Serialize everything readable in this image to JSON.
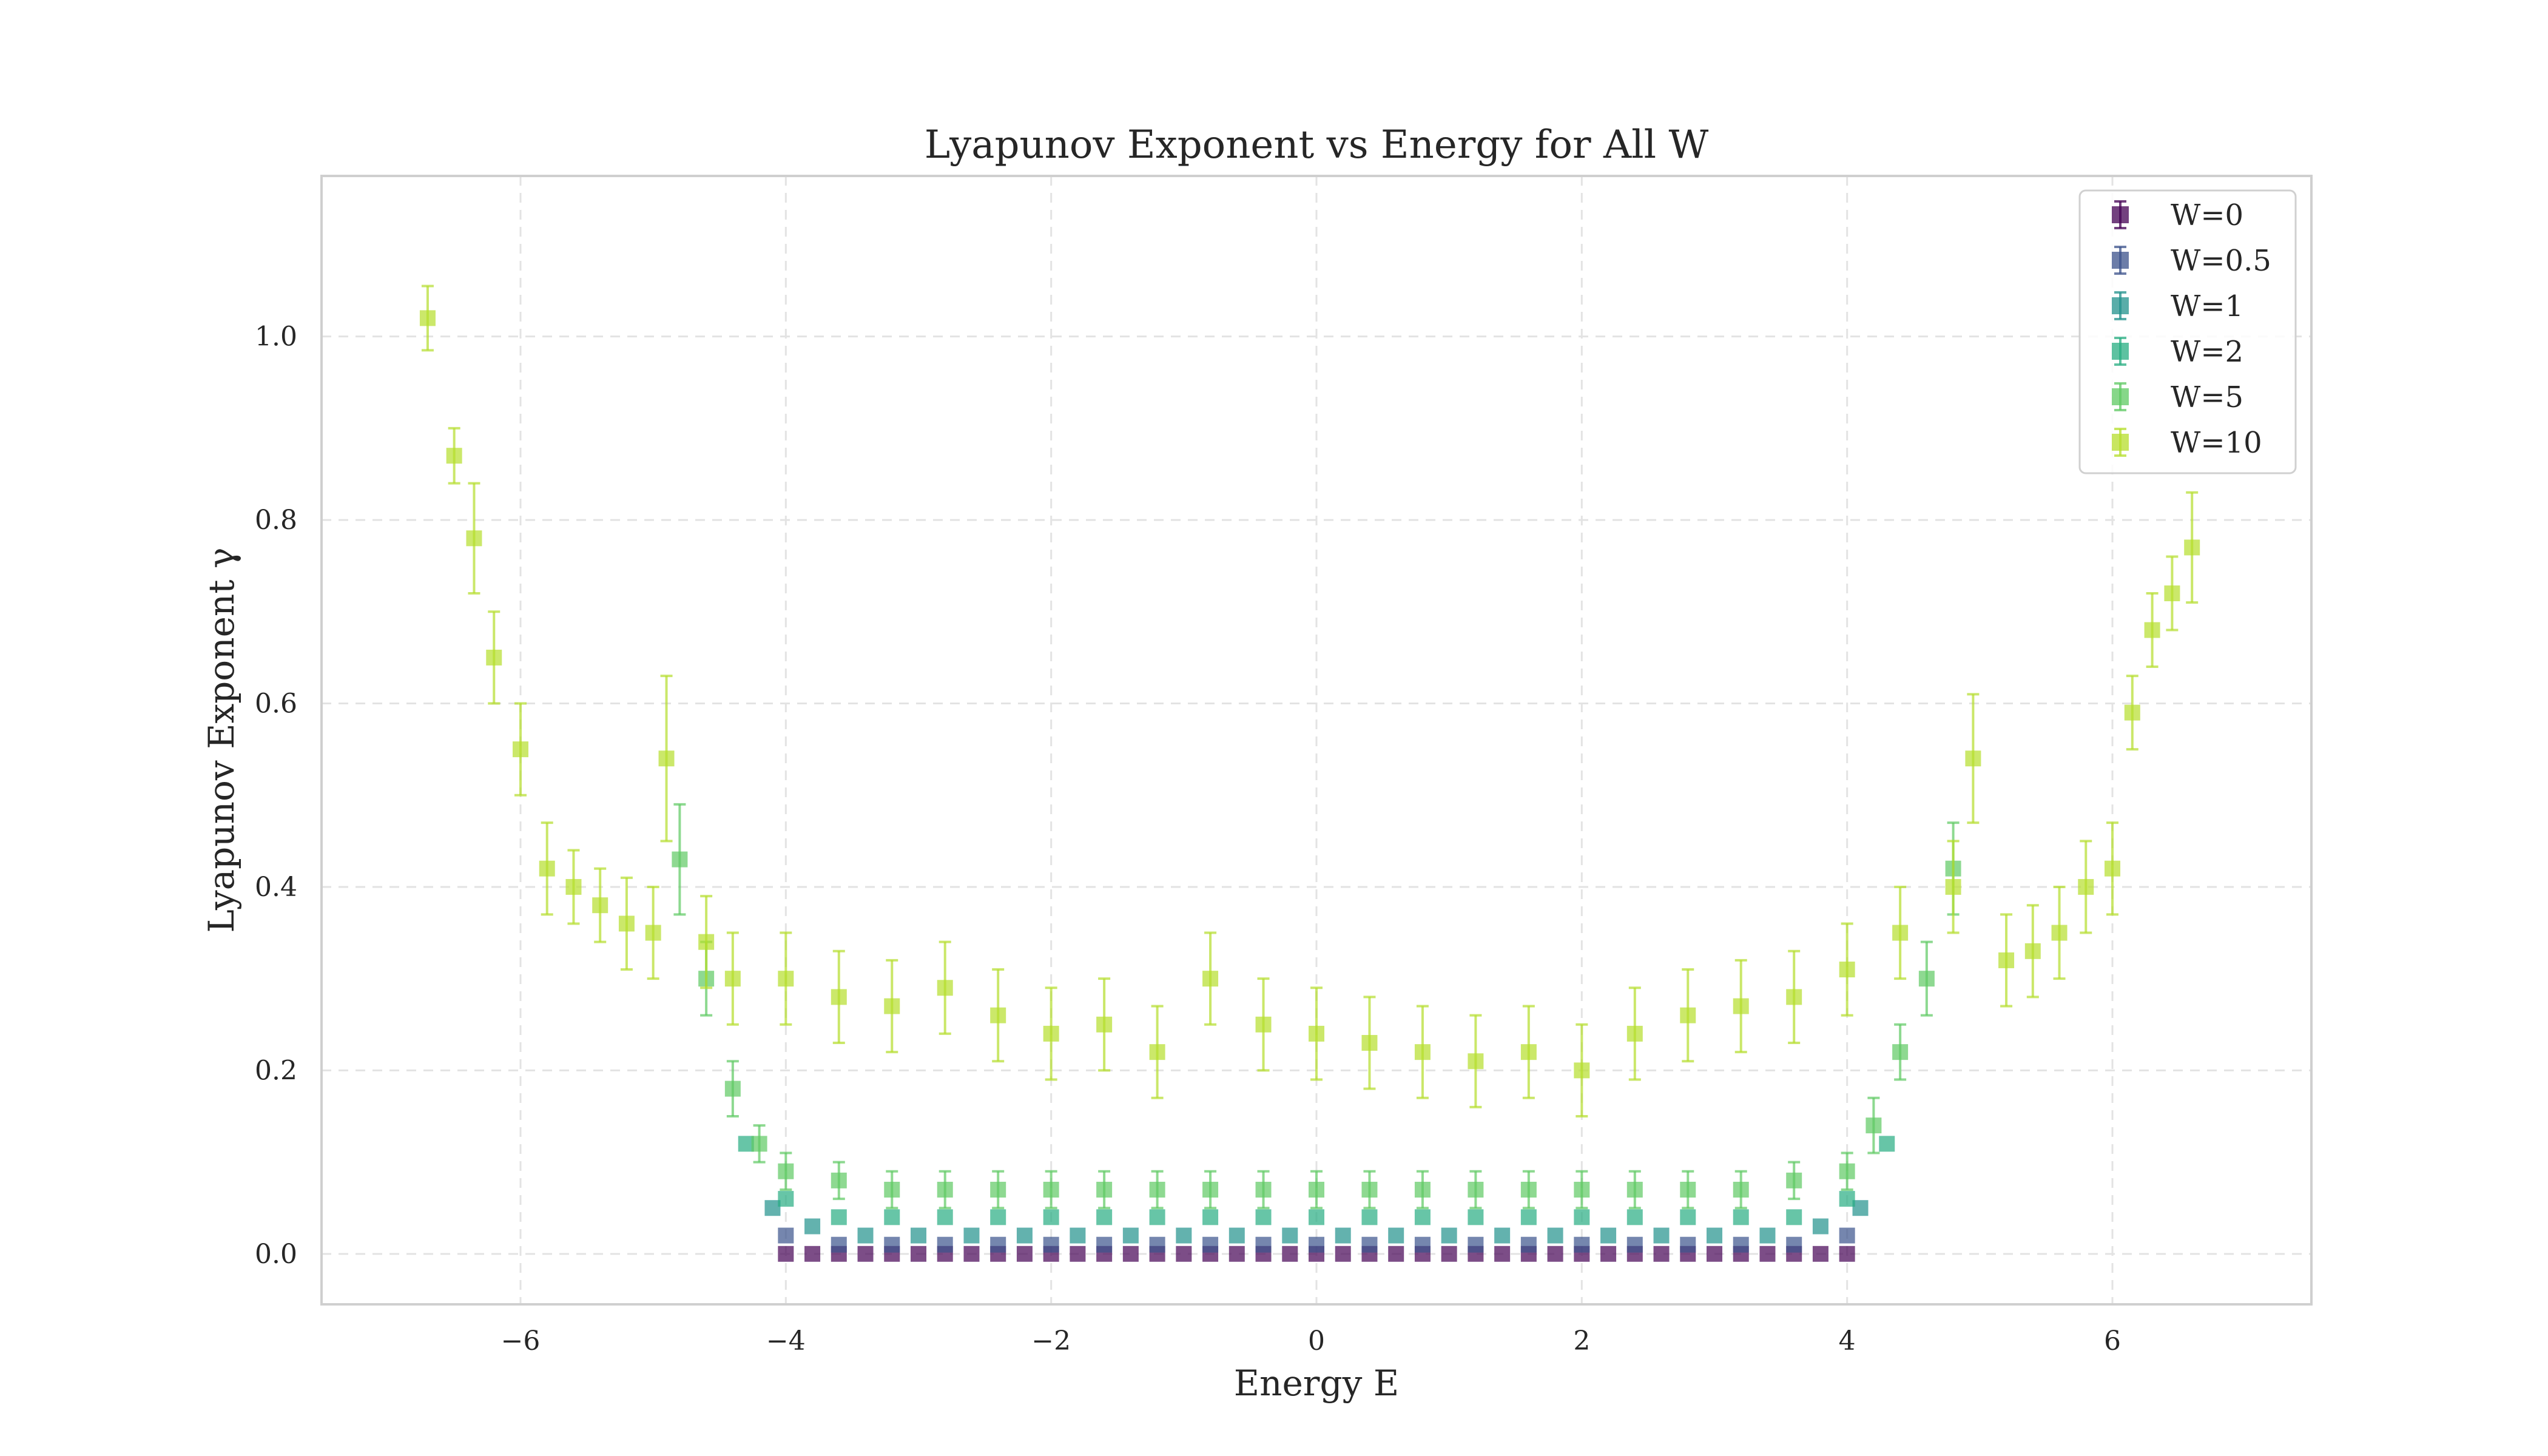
{
  "chart_data": {
    "type": "scatter",
    "title": "Lyapunov Exponent vs Energy for All W",
    "xlabel": "Energy E",
    "ylabel": "Lyapunov Exponent γ",
    "xlim": [
      -7.5,
      7.5
    ],
    "ylim": [
      -0.055,
      1.175
    ],
    "xticks": [
      -6,
      -4,
      -2,
      0,
      2,
      4,
      6
    ],
    "yticks": [
      0.0,
      0.2,
      0.4,
      0.6,
      0.8,
      1.0
    ],
    "xtick_labels": [
      "−6",
      "−4",
      "−2",
      "0",
      "2",
      "4",
      "6"
    ],
    "ytick_labels": [
      "0.0",
      "0.2",
      "0.4",
      "0.6",
      "0.8",
      "1.0"
    ],
    "grid": true,
    "legend_position": "top-right",
    "marker": "square",
    "error_bars": true,
    "series": [
      {
        "name": "W=0",
        "color": "#440154",
        "x": [
          -4.0,
          -3.8,
          -3.6,
          -3.4,
          -3.2,
          -3.0,
          -2.8,
          -2.6,
          -2.4,
          -2.2,
          -2.0,
          -1.8,
          -1.6,
          -1.4,
          -1.2,
          -1.0,
          -0.8,
          -0.6,
          -0.4,
          -0.2,
          0.0,
          0.2,
          0.4,
          0.6,
          0.8,
          1.0,
          1.2,
          1.4,
          1.6,
          1.8,
          2.0,
          2.2,
          2.4,
          2.6,
          2.8,
          3.0,
          3.2,
          3.4,
          3.6,
          3.8,
          4.0
        ],
        "y": [
          0.0,
          0.0,
          0.0,
          0.0,
          0.0,
          0.0,
          0.0,
          0.0,
          0.0,
          0.0,
          0.0,
          0.0,
          0.0,
          0.0,
          0.0,
          0.0,
          0.0,
          0.0,
          0.0,
          0.0,
          0.0,
          0.0,
          0.0,
          0.0,
          0.0,
          0.0,
          0.0,
          0.0,
          0.0,
          0.0,
          0.0,
          0.0,
          0.0,
          0.0,
          0.0,
          0.0,
          0.0,
          0.0,
          0.0,
          0.0,
          0.0
        ]
      },
      {
        "name": "W=0.5",
        "color": "#3b528b",
        "x": [
          -4.0,
          -3.6,
          -3.2,
          -2.8,
          -2.4,
          -2.0,
          -1.6,
          -1.2,
          -0.8,
          -0.4,
          0.0,
          0.4,
          0.8,
          1.2,
          1.6,
          2.0,
          2.4,
          2.8,
          3.2,
          3.6,
          4.0
        ],
        "y": [
          0.02,
          0.01,
          0.01,
          0.01,
          0.01,
          0.01,
          0.01,
          0.01,
          0.01,
          0.01,
          0.01,
          0.01,
          0.01,
          0.01,
          0.01,
          0.01,
          0.01,
          0.01,
          0.01,
          0.01,
          0.02
        ]
      },
      {
        "name": "W=1",
        "color": "#21918c",
        "x": [
          -4.1,
          -3.8,
          -3.4,
          -3.0,
          -2.6,
          -2.2,
          -1.8,
          -1.4,
          -1.0,
          -0.6,
          -0.2,
          0.2,
          0.6,
          1.0,
          1.4,
          1.8,
          2.2,
          2.6,
          3.0,
          3.4,
          3.8,
          4.1
        ],
        "y": [
          0.05,
          0.03,
          0.02,
          0.02,
          0.02,
          0.02,
          0.02,
          0.02,
          0.02,
          0.02,
          0.02,
          0.02,
          0.02,
          0.02,
          0.02,
          0.02,
          0.02,
          0.02,
          0.02,
          0.02,
          0.03,
          0.05
        ]
      },
      {
        "name": "W=2",
        "color": "#27ad81",
        "x": [
          -4.3,
          -4.0,
          -3.6,
          -3.2,
          -2.8,
          -2.4,
          -2.0,
          -1.6,
          -1.2,
          -0.8,
          -0.4,
          0.0,
          0.4,
          0.8,
          1.2,
          1.6,
          2.0,
          2.4,
          2.8,
          3.2,
          3.6,
          4.0,
          4.3
        ],
        "y": [
          0.12,
          0.06,
          0.04,
          0.04,
          0.04,
          0.04,
          0.04,
          0.04,
          0.04,
          0.04,
          0.04,
          0.04,
          0.04,
          0.04,
          0.04,
          0.04,
          0.04,
          0.04,
          0.04,
          0.04,
          0.04,
          0.06,
          0.12
        ]
      },
      {
        "name": "W=5",
        "color": "#5ec962",
        "x": [
          -4.8,
          -4.6,
          -4.4,
          -4.2,
          -4.0,
          -3.6,
          -3.2,
          -2.8,
          -2.4,
          -2.0,
          -1.6,
          -1.2,
          -0.8,
          -0.4,
          0.0,
          0.4,
          0.8,
          1.2,
          1.6,
          2.0,
          2.4,
          2.8,
          3.2,
          3.6,
          4.0,
          4.2,
          4.4,
          4.6,
          4.8
        ],
        "y": [
          0.43,
          0.3,
          0.18,
          0.12,
          0.09,
          0.08,
          0.07,
          0.07,
          0.07,
          0.07,
          0.07,
          0.07,
          0.07,
          0.07,
          0.07,
          0.07,
          0.07,
          0.07,
          0.07,
          0.07,
          0.07,
          0.07,
          0.07,
          0.08,
          0.09,
          0.14,
          0.22,
          0.3,
          0.42
        ],
        "errors": [
          0.06,
          0.04,
          0.03,
          0.02,
          0.02,
          0.02,
          0.02,
          0.02,
          0.02,
          0.02,
          0.02,
          0.02,
          0.02,
          0.02,
          0.02,
          0.02,
          0.02,
          0.02,
          0.02,
          0.02,
          0.02,
          0.02,
          0.02,
          0.02,
          0.02,
          0.03,
          0.03,
          0.04,
          0.05
        ]
      },
      {
        "name": "W=10",
        "color": "#b5de2b",
        "x": [
          -6.7,
          -6.5,
          -6.35,
          -6.2,
          -6.0,
          -5.8,
          -5.6,
          -5.4,
          -5.2,
          -5.0,
          -4.9,
          -4.6,
          -4.4,
          -4.0,
          -3.6,
          -3.2,
          -2.8,
          -2.4,
          -2.0,
          -1.6,
          -1.2,
          -0.8,
          -0.4,
          0.0,
          0.4,
          0.8,
          1.2,
          1.6,
          2.0,
          2.4,
          2.8,
          3.2,
          3.6,
          4.0,
          4.4,
          4.8,
          4.95,
          5.2,
          5.4,
          5.6,
          5.8,
          6.0,
          6.15,
          6.3,
          6.45,
          6.6
        ],
        "y": [
          1.02,
          0.87,
          0.78,
          0.65,
          0.55,
          0.42,
          0.4,
          0.38,
          0.36,
          0.35,
          0.54,
          0.34,
          0.3,
          0.3,
          0.28,
          0.27,
          0.29,
          0.26,
          0.24,
          0.25,
          0.22,
          0.3,
          0.25,
          0.24,
          0.23,
          0.22,
          0.21,
          0.22,
          0.2,
          0.24,
          0.26,
          0.27,
          0.28,
          0.31,
          0.35,
          0.4,
          0.54,
          0.32,
          0.33,
          0.35,
          0.4,
          0.42,
          0.59,
          0.68,
          0.72,
          0.77
        ],
        "errors": [
          0.035,
          0.03,
          0.06,
          0.05,
          0.05,
          0.05,
          0.04,
          0.04,
          0.05,
          0.05,
          0.09,
          0.05,
          0.05,
          0.05,
          0.05,
          0.05,
          0.05,
          0.05,
          0.05,
          0.05,
          0.05,
          0.05,
          0.05,
          0.05,
          0.05,
          0.05,
          0.05,
          0.05,
          0.05,
          0.05,
          0.05,
          0.05,
          0.05,
          0.05,
          0.05,
          0.05,
          0.07,
          0.05,
          0.05,
          0.05,
          0.05,
          0.05,
          0.04,
          0.04,
          0.04,
          0.06
        ]
      }
    ]
  }
}
